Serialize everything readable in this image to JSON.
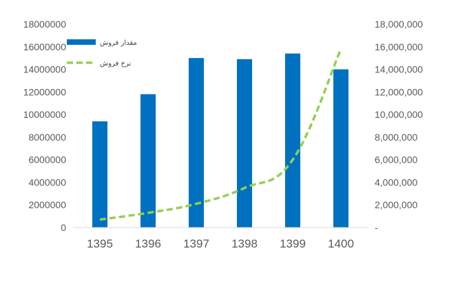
{
  "chart_data": {
    "type": "bar",
    "categories": [
      "1395",
      "1396",
      "1397",
      "1398",
      "1399",
      "1400"
    ],
    "series": [
      {
        "name": "مقدار فروش",
        "type": "bar",
        "axis": "left",
        "color": "#0070C0",
        "values": [
          9400000,
          11800000,
          15000000,
          14900000,
          15400000,
          14000000
        ]
      },
      {
        "name": "نرخ فروش",
        "type": "line",
        "axis": "right",
        "style": "dashed",
        "color": "#92D050",
        "values": [
          700000,
          1300000,
          2100000,
          3500000,
          6000000,
          15800000
        ]
      }
    ],
    "y_left": {
      "ylim": [
        0,
        18000000
      ],
      "ticks": [
        "0",
        "2000000",
        "4000000",
        "6000000",
        "8000000",
        "10000000",
        "12000000",
        "14000000",
        "16000000",
        "18000000"
      ]
    },
    "y_right": {
      "ylim": [
        0,
        18000000
      ],
      "ticks": [
        "-",
        "2,000,000",
        "4,000,000",
        "6,000,000",
        "8,000,000",
        "10,000,000",
        "12,000,000",
        "14,000,000",
        "16,000,000",
        "18,000,000"
      ]
    },
    "title": "",
    "xlabel": "",
    "ylabel": "",
    "grid": false,
    "legend_position": "top-left"
  }
}
